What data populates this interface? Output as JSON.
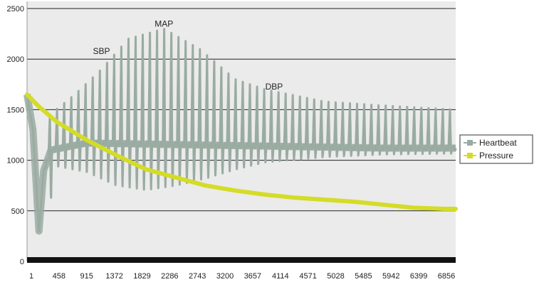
{
  "chart_data": {
    "type": "line",
    "title": "",
    "xlabel": "",
    "ylabel": "",
    "ylim": [
      0,
      2500
    ],
    "yticks": [
      "0",
      "500",
      "1000",
      "1500",
      "2000",
      "2500"
    ],
    "xtick_labels": [
      "1",
      "458",
      "915",
      "1372",
      "1829",
      "2286",
      "2743",
      "3200",
      "3657",
      "4114",
      "4571",
      "5028",
      "5485",
      "5942",
      "6399",
      "6856"
    ],
    "grid": "horizontal",
    "legend": "right",
    "annotations": [
      {
        "text": "SBP",
        "x": 1250,
        "y": 2050
      },
      {
        "text": "MAP",
        "x": 2300,
        "y": 2320
      },
      {
        "text": "DBP",
        "x": 4150,
        "y": 1700
      }
    ],
    "series": [
      {
        "name": "Heartbeat",
        "color": "#9aaba2",
        "style": "oscillation",
        "baseline": [
          [
            0,
            1650
          ],
          [
            100,
            1300
          ],
          [
            200,
            300
          ],
          [
            280,
            900
          ],
          [
            400,
            1100
          ],
          [
            1000,
            1170
          ],
          [
            2000,
            1160
          ],
          [
            3000,
            1150
          ],
          [
            4000,
            1140
          ],
          [
            5000,
            1130
          ],
          [
            6000,
            1120
          ],
          [
            7200,
            1120
          ]
        ],
        "upper_envelope": [
          [
            0,
            1750
          ],
          [
            280,
            1400
          ],
          [
            800,
            1650
          ],
          [
            1250,
            1900
          ],
          [
            1700,
            2200
          ],
          [
            2300,
            2300
          ],
          [
            2900,
            2100
          ],
          [
            3500,
            1800
          ],
          [
            4000,
            1700
          ],
          [
            5000,
            1580
          ],
          [
            6000,
            1540
          ],
          [
            7200,
            1500
          ]
        ],
        "lower_envelope": [
          [
            0,
            1400
          ],
          [
            150,
            500
          ],
          [
            280,
            120
          ],
          [
            500,
            920
          ],
          [
            1000,
            850
          ],
          [
            1500,
            700
          ],
          [
            2000,
            650
          ],
          [
            2500,
            700
          ],
          [
            3000,
            780
          ],
          [
            3500,
            880
          ],
          [
            4000,
            960
          ],
          [
            5000,
            1020
          ],
          [
            6000,
            1050
          ],
          [
            7200,
            1060
          ]
        ],
        "period": 120
      },
      {
        "name": "Pressure",
        "color": "#d4dc27",
        "x": [
          0,
          200,
          500,
          1000,
          1500,
          2000,
          2500,
          3000,
          3500,
          4000,
          4500,
          5000,
          5500,
          6000,
          6500,
          7000,
          7200
        ],
        "values": [
          1650,
          1530,
          1380,
          1200,
          1050,
          910,
          830,
          750,
          700,
          660,
          630,
          610,
          590,
          560,
          530,
          520,
          520
        ]
      }
    ],
    "xlim": [
      0,
      7200
    ]
  }
}
